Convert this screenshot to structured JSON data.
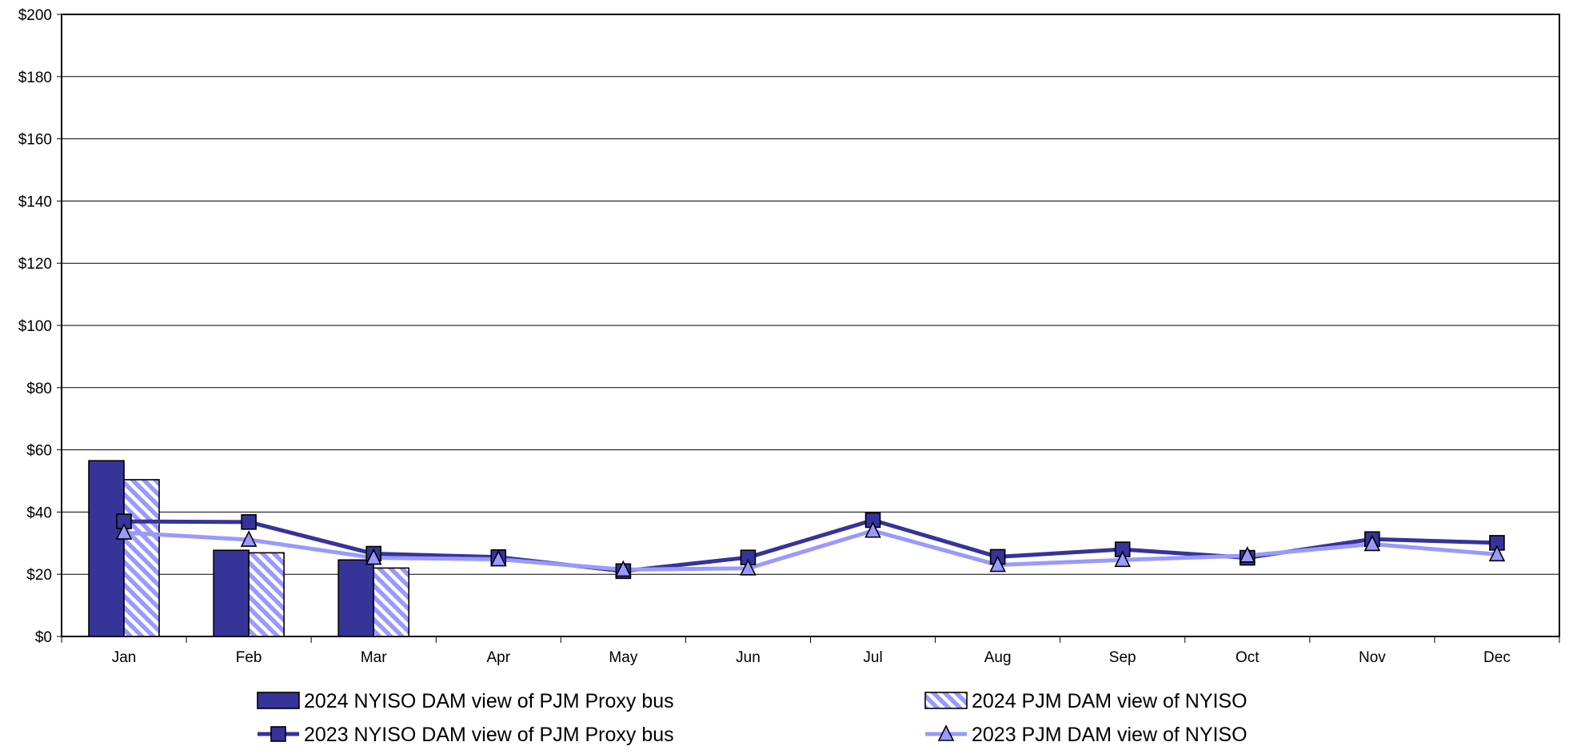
{
  "chart_data": {
    "type": "bar",
    "title": "",
    "xlabel": "",
    "ylabel": "",
    "ylim": [
      0,
      200
    ],
    "y_ticks": [
      0,
      20,
      40,
      60,
      80,
      100,
      120,
      140,
      160,
      180,
      200
    ],
    "y_tick_labels": [
      "$0",
      "$20",
      "$40",
      "$60",
      "$80",
      "$100",
      "$120",
      "$140",
      "$160",
      "$180",
      "$200"
    ],
    "categories": [
      "Jan",
      "Feb",
      "Mar",
      "Apr",
      "May",
      "Jun",
      "Jul",
      "Aug",
      "Sep",
      "Oct",
      "Nov",
      "Dec"
    ],
    "grid": true,
    "legend_position": "bottom",
    "bar_series": [
      {
        "name": "2024 NYISO DAM view of PJM Proxy bus",
        "color": "#363399",
        "pattern": "solid",
        "values": [
          56.5,
          27.7,
          24.6,
          null,
          null,
          null,
          null,
          null,
          null,
          null,
          null,
          null
        ]
      },
      {
        "name": "2024 PJM DAM view of NYISO",
        "color": "#9999FF",
        "pattern": "diagonal-stripes",
        "values": [
          50.4,
          26.9,
          22.0,
          null,
          null,
          null,
          null,
          null,
          null,
          null,
          null,
          null
        ]
      }
    ],
    "line_series": [
      {
        "name": "2023 NYISO DAM view of PJM Proxy bus",
        "color": "#363399",
        "marker": "square",
        "values": [
          37.0,
          36.8,
          26.6,
          25.5,
          21.0,
          25.4,
          37.4,
          25.6,
          28.0,
          25.3,
          31.3,
          30.1
        ]
      },
      {
        "name": "2023 PJM DAM view of NYISO",
        "color": "#9999FF",
        "marker": "triangle",
        "values": [
          33.4,
          31.1,
          25.3,
          24.8,
          21.5,
          21.9,
          34.0,
          23.0,
          24.6,
          26.0,
          29.7,
          26.4
        ]
      }
    ]
  }
}
